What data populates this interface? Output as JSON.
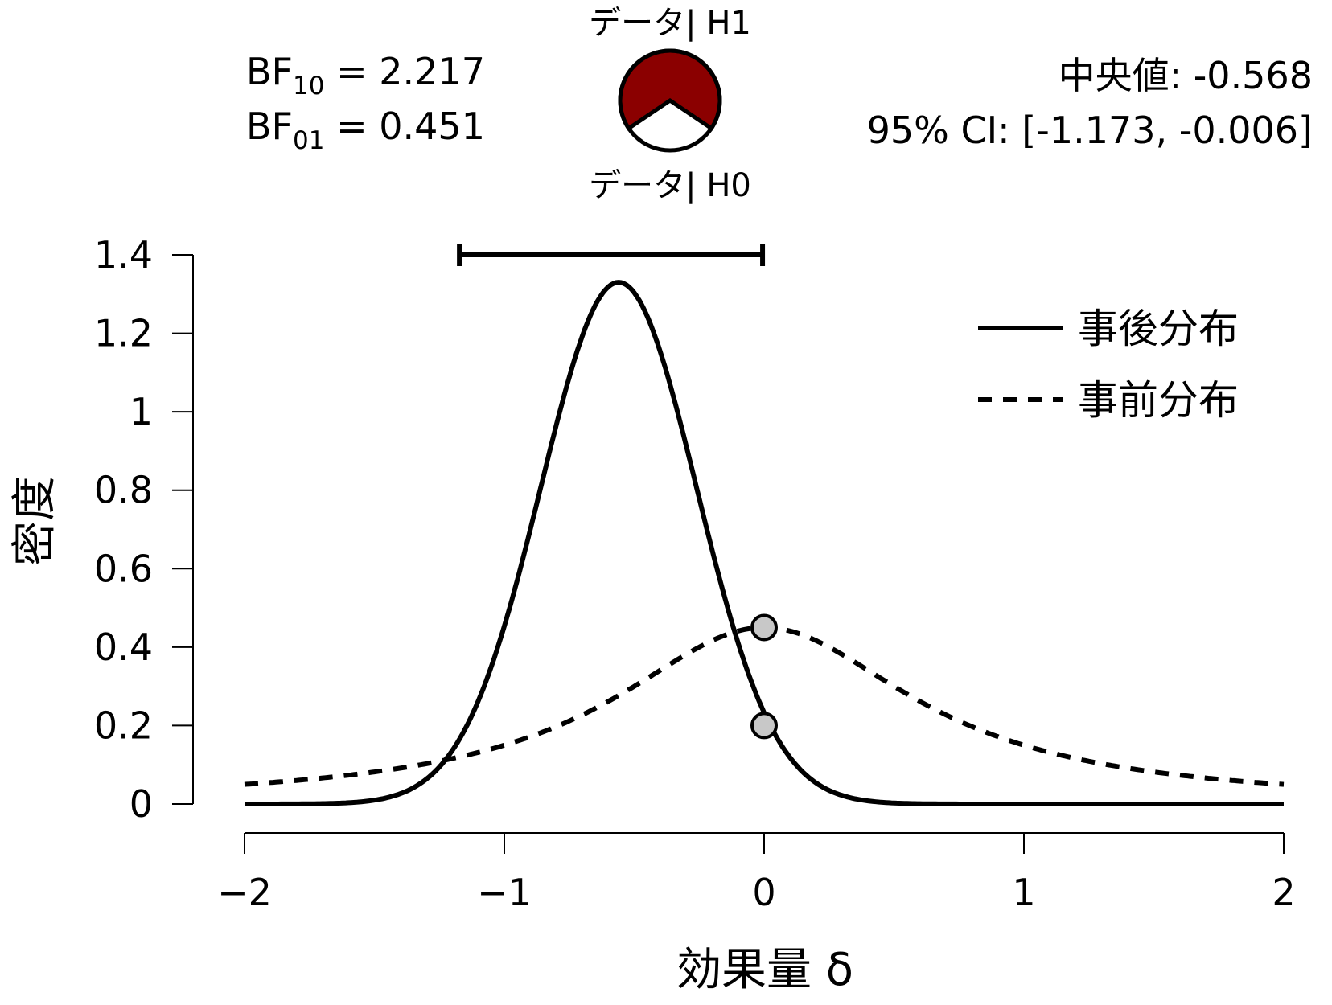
{
  "chart_data": {
    "type": "line",
    "xlabel": "効果量 δ",
    "ylabel": "密度",
    "xlim": [
      -2,
      2
    ],
    "ylim": [
      0,
      1.4
    ],
    "x_ticks": [
      -2,
      -1,
      0,
      1,
      2
    ],
    "x_tick_labels": [
      "−2",
      "−1",
      "0",
      "1",
      "2"
    ],
    "y_ticks": [
      0,
      0.2,
      0.4,
      0.6,
      0.8,
      1,
      1.2,
      1.4
    ],
    "y_tick_labels": [
      "0",
      "0.2",
      "0.4",
      "0.6",
      "0.8",
      "1",
      "1.2",
      "1.4"
    ],
    "grid": false,
    "legend_position": "top-right",
    "series": [
      {
        "name": "事後分布",
        "style": "solid",
        "distribution": "normal",
        "mean": -0.56,
        "sd": 0.3,
        "peak_density": 1.33
      },
      {
        "name": "事前分布",
        "style": "dashed",
        "distribution": "cauchy",
        "location": 0,
        "scale": 0.707,
        "peak_density": 0.45
      }
    ],
    "ci_bar": {
      "lower": -1.173,
      "upper": -0.006
    },
    "points": [
      {
        "x": 0,
        "y": 0.45
      },
      {
        "x": 0,
        "y": 0.2
      }
    ],
    "stats": {
      "bf10_prefix": "BF",
      "bf10_sub": "10",
      "bf10_value": " = 2.217",
      "bf01_prefix": "BF",
      "bf01_sub": "01",
      "bf01_value": " = 0.451",
      "median": "中央値: -0.568",
      "ci": "95% CI: [-1.173, -0.006]"
    },
    "pie": {
      "top_label": "データ| H1",
      "bottom_label": "データ| H0",
      "h1_fraction": 0.689,
      "h1_color": "#8b0000",
      "h0_color": "#ffffff"
    }
  }
}
